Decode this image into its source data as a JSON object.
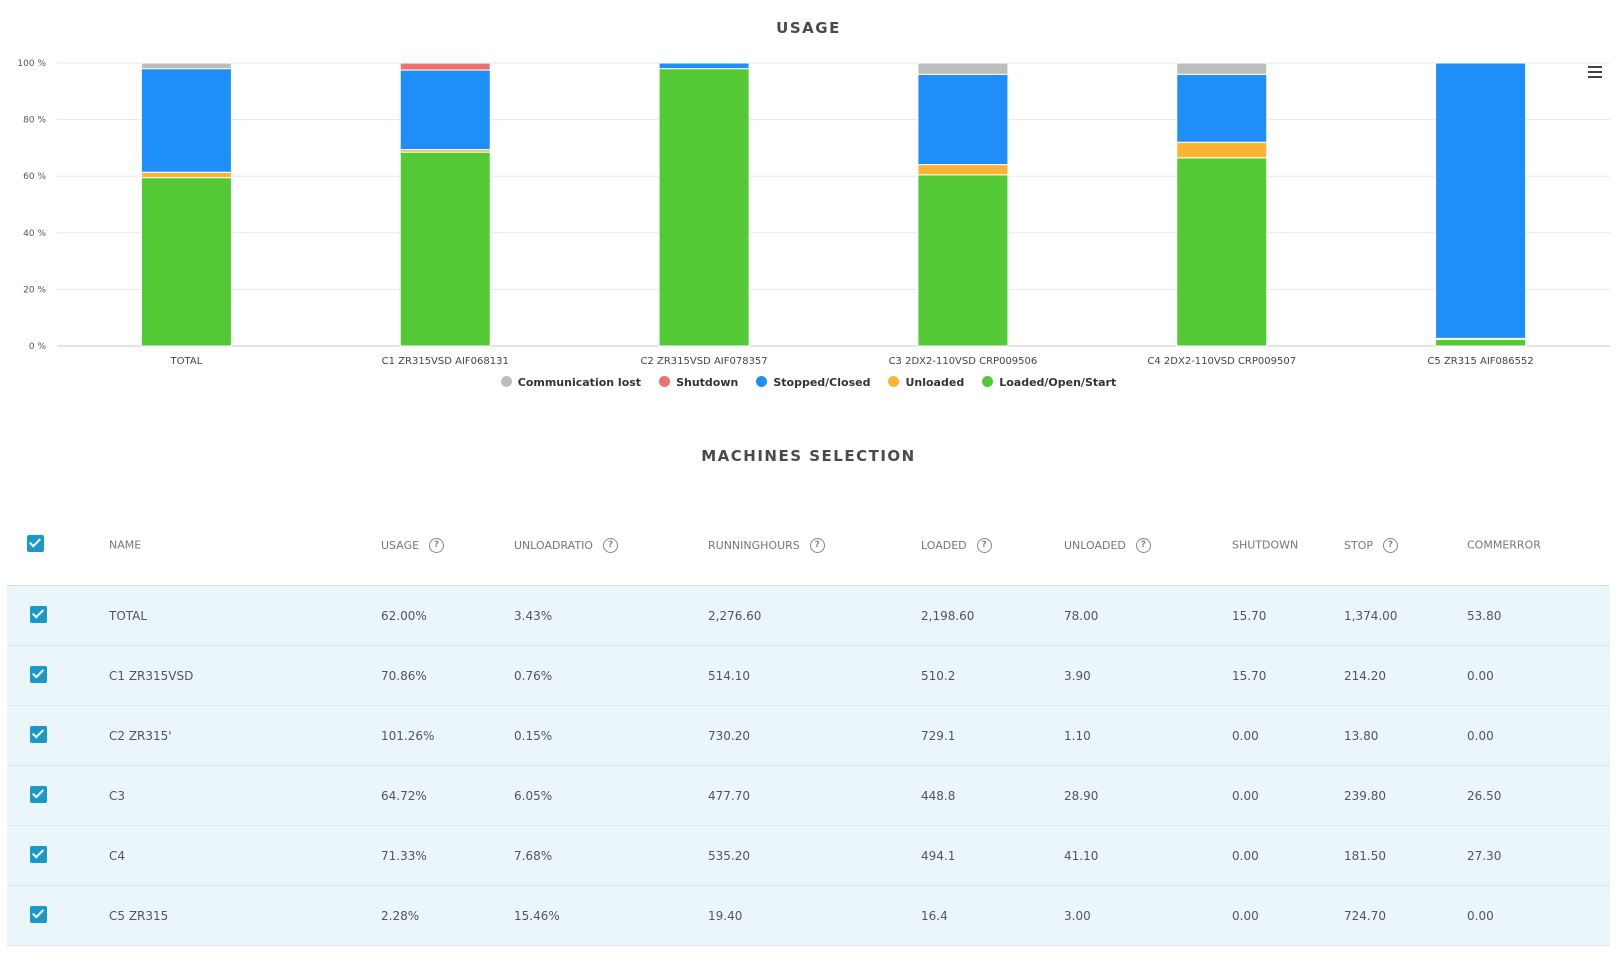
{
  "chart_title": "USAGE",
  "table_title": "MACHINES SELECTION",
  "colors": {
    "comm_lost": "#bdbdbd",
    "shutdown": "#ef7070",
    "stopped": "#1e8ff8",
    "unloaded": "#fbb331",
    "loaded": "#52c935",
    "checkbox": "#1b98c7",
    "row_bg": "#ebf6fb"
  },
  "chart_data": {
    "type": "bar",
    "stacked": true,
    "title": "USAGE",
    "categories": [
      "TOTAL",
      "C1 ZR315VSD AIF068131",
      "C2 ZR315VSD AIF078357",
      "C3 2DX2-110VSD CRP009506",
      "C4 2DX2-110VSD CRP009507",
      "C5 ZR315 AIF086552"
    ],
    "series": [
      {
        "name": "Loaded/Open/Start",
        "color": "#52c935",
        "values": [
          59.5,
          68.5,
          98.0,
          60.5,
          66.5,
          2.3
        ]
      },
      {
        "name": "Unloaded",
        "color": "#fbb331",
        "values": [
          1.9,
          0.9,
          0.0,
          3.6,
          5.5,
          0.4
        ]
      },
      {
        "name": "Stopped/Closed",
        "color": "#1e8ff8",
        "values": [
          36.6,
          28.1,
          2.0,
          31.9,
          24.0,
          97.3
        ]
      },
      {
        "name": "Shutdown",
        "color": "#ef7070",
        "values": [
          0.0,
          2.5,
          0.0,
          0.0,
          0.0,
          0.0
        ]
      },
      {
        "name": "Communication lost",
        "color": "#bdbdbd",
        "values": [
          2.0,
          0.0,
          0.0,
          4.0,
          4.0,
          0.0
        ]
      }
    ],
    "ylim": [
      0,
      100
    ],
    "yticks": [
      "0 %",
      "20 %",
      "40 %",
      "60 %",
      "80 %",
      "100 %"
    ],
    "ytick_values": [
      0,
      20,
      40,
      60,
      80,
      100
    ],
    "grid": true,
    "legend_order": [
      "Communication lost",
      "Shutdown",
      "Stopped/Closed",
      "Unloaded",
      "Loaded/Open/Start"
    ],
    "legend_placement": "bottom"
  },
  "table": {
    "headers": [
      {
        "label": "NAME",
        "help": false
      },
      {
        "label": "USAGE",
        "help": true
      },
      {
        "label": "UNLOADRATIO",
        "help": true
      },
      {
        "label": "RUNNINGHOURS",
        "help": true
      },
      {
        "label": "LOADED",
        "help": true
      },
      {
        "label": "UNLOADED",
        "help": true
      },
      {
        "label": "SHUTDOWN",
        "help": false
      },
      {
        "label": "STOP",
        "help": true
      },
      {
        "label": "COMMERROR",
        "help": false
      }
    ],
    "help_glyph": "?",
    "rows": [
      {
        "checked": true,
        "cells": [
          "TOTAL",
          "62.00%",
          "3.43%",
          "2,276.60",
          "2,198.60",
          "78.00",
          "15.70",
          "1,374.00",
          "53.80"
        ]
      },
      {
        "checked": true,
        "cells": [
          "C1 ZR315VSD",
          "70.86%",
          "0.76%",
          "514.10",
          "510.2",
          "3.90",
          "15.70",
          "214.20",
          "0.00"
        ]
      },
      {
        "checked": true,
        "cells": [
          "C2 ZR315'",
          "101.26%",
          "0.15%",
          "730.20",
          "729.1",
          "1.10",
          "0.00",
          "13.80",
          "0.00"
        ]
      },
      {
        "checked": true,
        "cells": [
          "C3",
          "64.72%",
          "6.05%",
          "477.70",
          "448.8",
          "28.90",
          "0.00",
          "239.80",
          "26.50"
        ]
      },
      {
        "checked": true,
        "cells": [
          "C4",
          "71.33%",
          "7.68%",
          "535.20",
          "494.1",
          "41.10",
          "0.00",
          "181.50",
          "27.30"
        ]
      },
      {
        "checked": true,
        "cells": [
          "C5 ZR315",
          "2.28%",
          "15.46%",
          "19.40",
          "16.4",
          "3.00",
          "0.00",
          "724.70",
          "0.00"
        ]
      }
    ]
  }
}
